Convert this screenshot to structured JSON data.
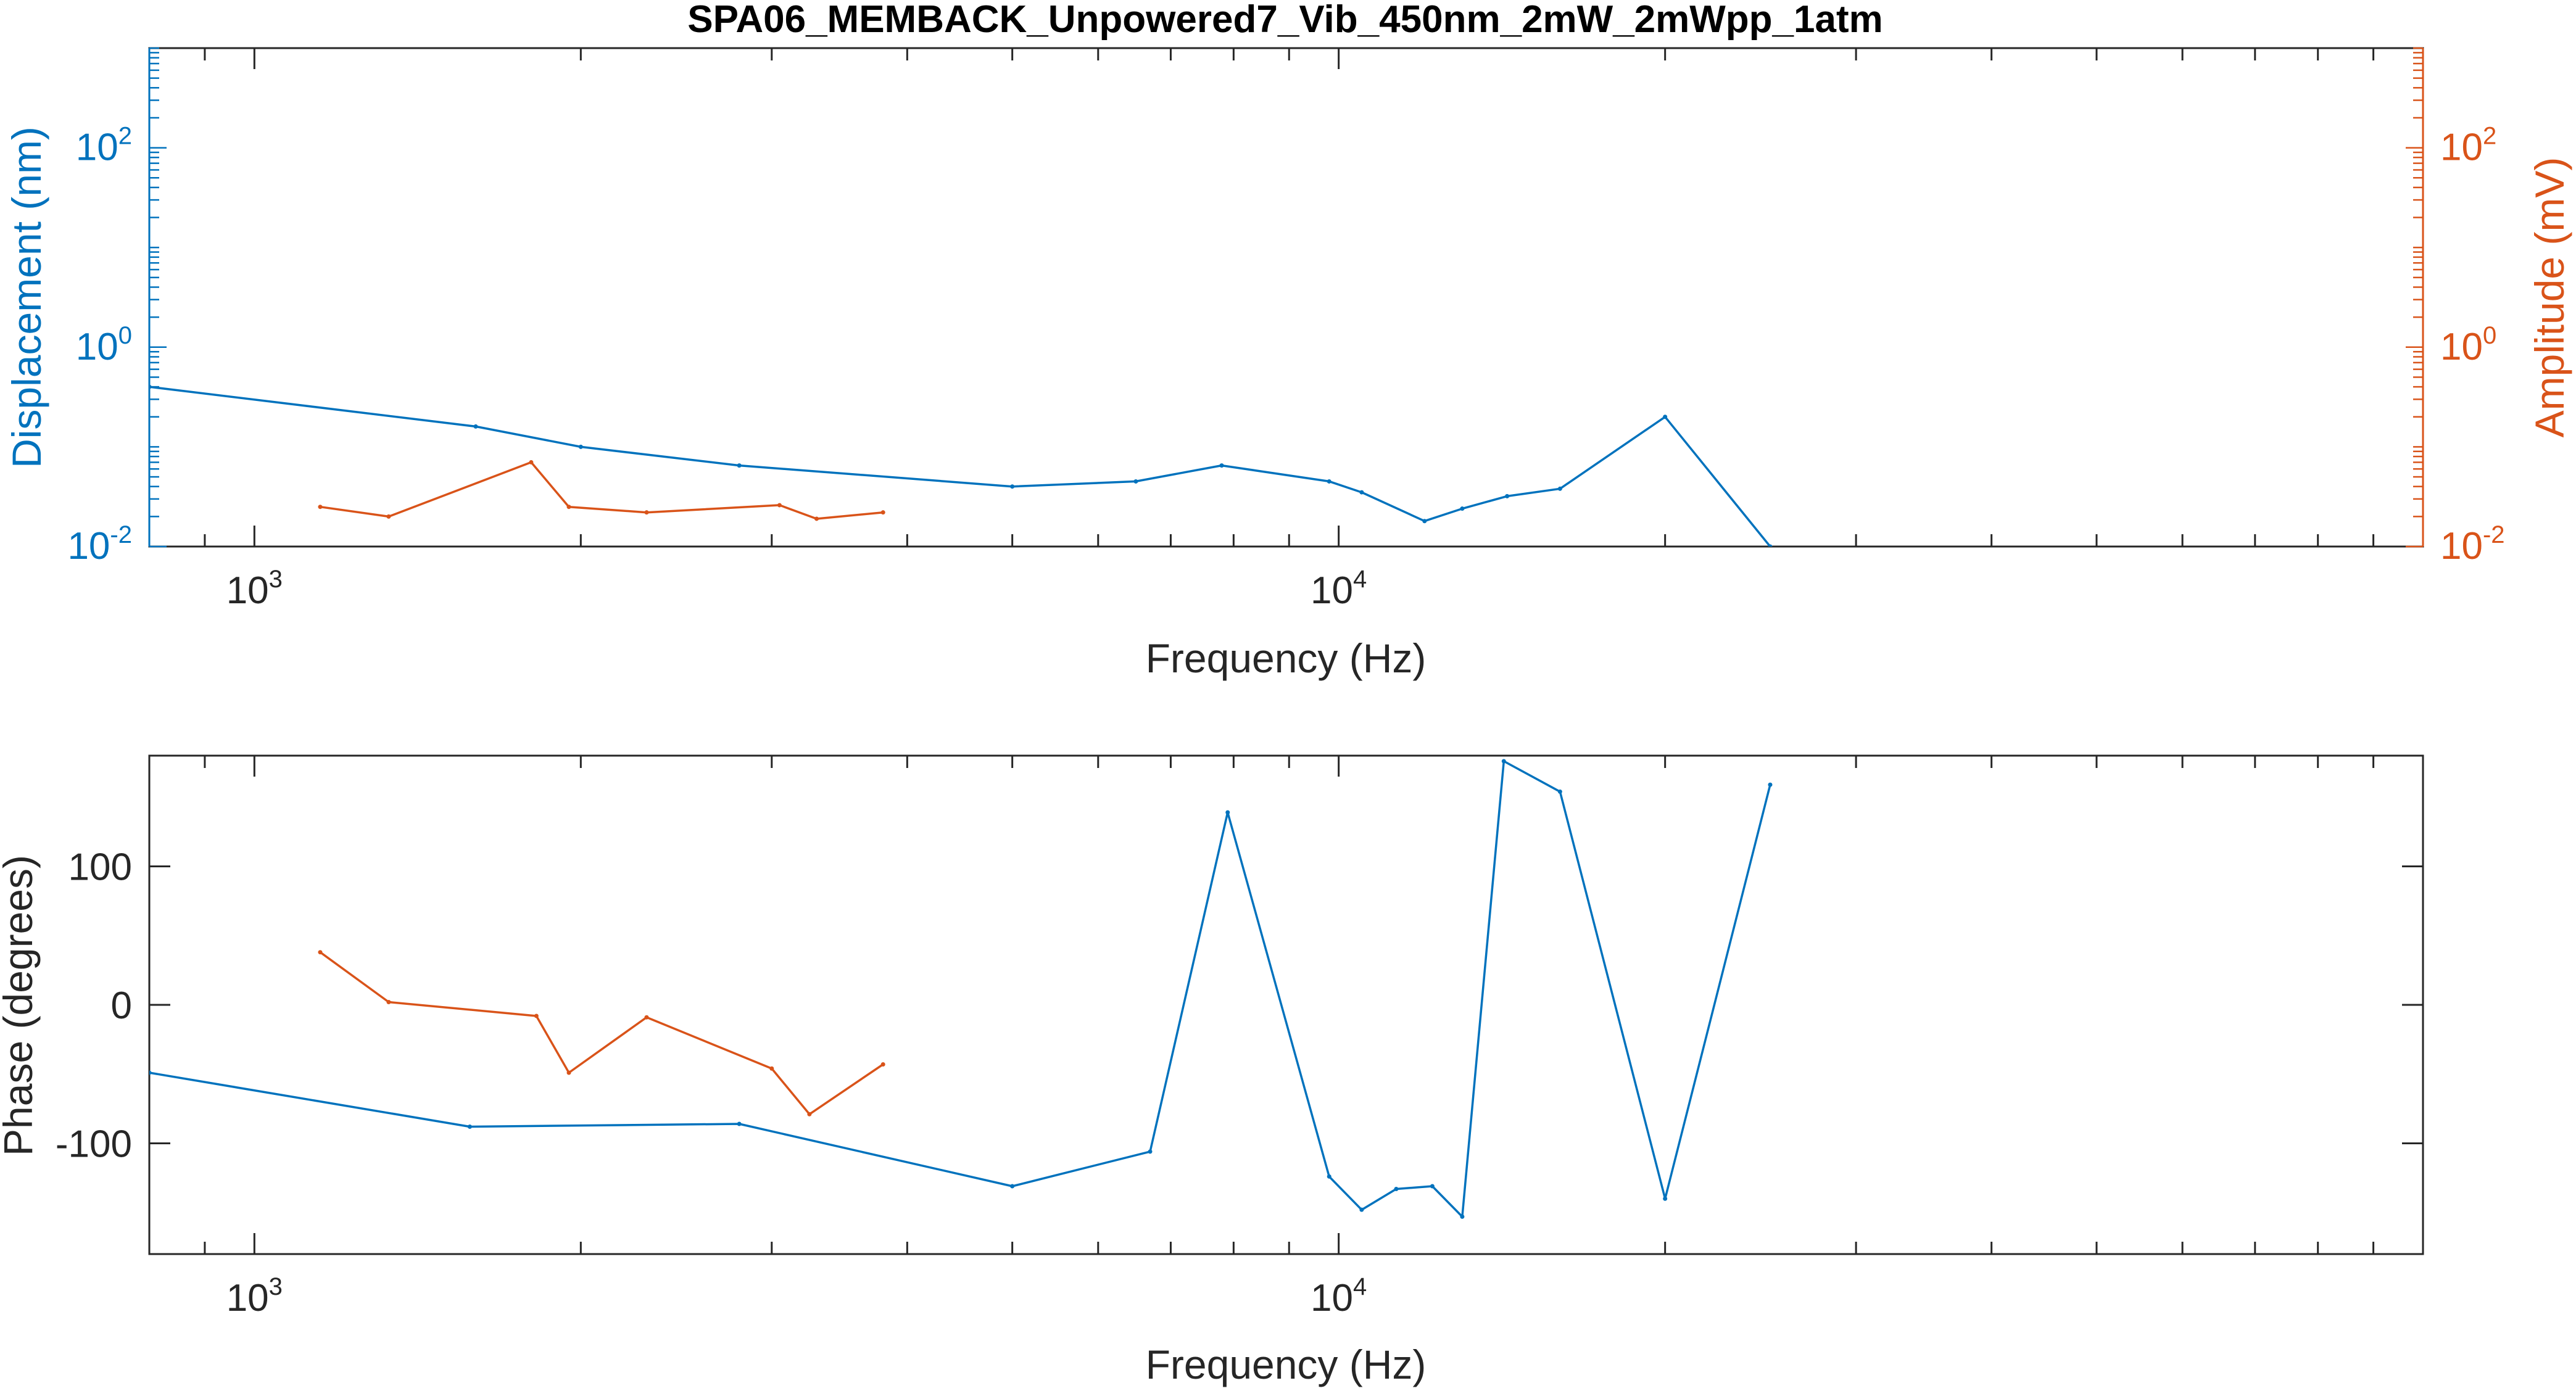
{
  "colors": {
    "blue": "#0072BD",
    "orange": "#D95319",
    "axis": "#262626",
    "grid": "#DFDFDF"
  },
  "figure": {
    "title": "SPA06_MEMBACK_Unpowered7_Vib_450nm_2mW_2mWpp_1atm"
  },
  "chart_data": [
    {
      "type": "line",
      "title": "SPA06_MEMBACK_Unpowered7_Vib_450nm_2mW_2mWpp_1atm",
      "xlabel": "Frequency (Hz)",
      "ylabel_left": "Displacement (nm)",
      "ylabel_right": "Amplitude (mV)",
      "xscale": "log",
      "yscale": "log",
      "xlim": [
        800,
        100000
      ],
      "ylim_left": [
        0.01,
        1000
      ],
      "ylim_right": [
        0.01,
        1000
      ],
      "x_ticks": [
        {
          "base": "10",
          "exp": "3",
          "value": 1000
        },
        {
          "base": "10",
          "exp": "4",
          "value": 10000
        }
      ],
      "y_ticks_left": [
        {
          "base": "10",
          "exp": "-2",
          "value": 0.01
        },
        {
          "base": "10",
          "exp": "0",
          "value": 1
        },
        {
          "base": "10",
          "exp": "2",
          "value": 100
        }
      ],
      "y_ticks_right": [
        {
          "base": "10",
          "exp": "-2",
          "value": 0.01
        },
        {
          "base": "10",
          "exp": "0",
          "value": 1
        },
        {
          "base": "10",
          "exp": "2",
          "value": 100
        }
      ],
      "grid": false,
      "series": [
        {
          "axis": "left",
          "color": "#0072BD",
          "x": [
            800,
            1600,
            2000,
            2800,
            5000,
            6500,
            7800,
            9800,
            10500,
            12000,
            13000,
            14300,
            16000,
            20000,
            25000
          ],
          "y": [
            0.4,
            0.16,
            0.1,
            0.065,
            0.04,
            0.045,
            0.065,
            0.045,
            0.035,
            0.018,
            0.024,
            0.032,
            0.038,
            0.2,
            0.01
          ]
        },
        {
          "axis": "right",
          "color": "#D95319",
          "x": [
            1150,
            1330,
            1800,
            1950,
            2300,
            3050,
            3300,
            3800
          ],
          "y": [
            0.025,
            0.02,
            0.07,
            0.025,
            0.022,
            0.026,
            0.019,
            0.022
          ]
        }
      ]
    },
    {
      "type": "line",
      "xlabel": "Frequency (Hz)",
      "ylabel": "Phase (degrees)",
      "xscale": "log",
      "yscale": "linear",
      "xlim": [
        800,
        100000
      ],
      "ylim": [
        -180,
        180
      ],
      "x_ticks": [
        {
          "base": "10",
          "exp": "3",
          "value": 1000
        },
        {
          "base": "10",
          "exp": "4",
          "value": 10000
        }
      ],
      "y_ticks": [
        {
          "label": "100",
          "value": 100
        },
        {
          "label": "0",
          "value": 0
        },
        {
          "label": "-100",
          "value": -100
        }
      ],
      "grid": false,
      "series": [
        {
          "color": "#0072BD",
          "x": [
            800,
            1580,
            2800,
            5000,
            6700,
            7900,
            9800,
            10500,
            11300,
            12200,
            13000,
            14200,
            16000,
            20000,
            25000
          ],
          "y": [
            -49,
            -88,
            -86,
            -131,
            -106,
            139,
            -124,
            -148,
            -133,
            -131,
            -153,
            176,
            154,
            -140,
            159
          ]
        },
        {
          "color": "#D95319",
          "x": [
            1150,
            1330,
            1820,
            1950,
            2300,
            3000,
            3250,
            3800
          ],
          "y": [
            38,
            2,
            -8,
            -49,
            -9,
            -46,
            -79,
            -43
          ]
        }
      ]
    }
  ]
}
